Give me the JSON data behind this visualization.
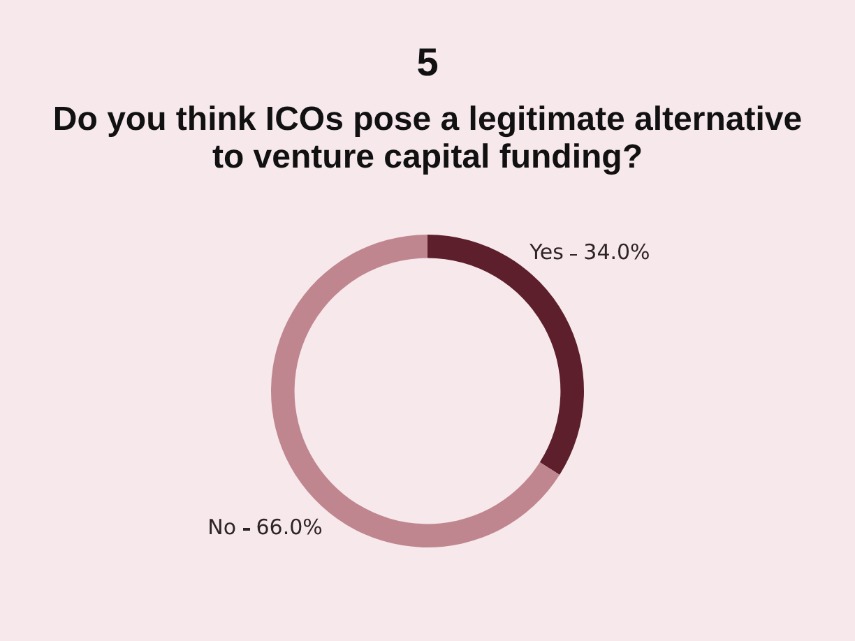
{
  "chart_data": {
    "type": "donut",
    "title": "5",
    "subtitle": "Do you think ICOs pose a legitimate alternative to venture capital funding?",
    "categories": [
      "Yes",
      "No"
    ],
    "values": [
      34.0,
      66.0
    ],
    "colors": [
      "#5c1f2b",
      "#c0868f"
    ],
    "value_labels": [
      "34.0%",
      "66.0%"
    ],
    "legend": false
  }
}
